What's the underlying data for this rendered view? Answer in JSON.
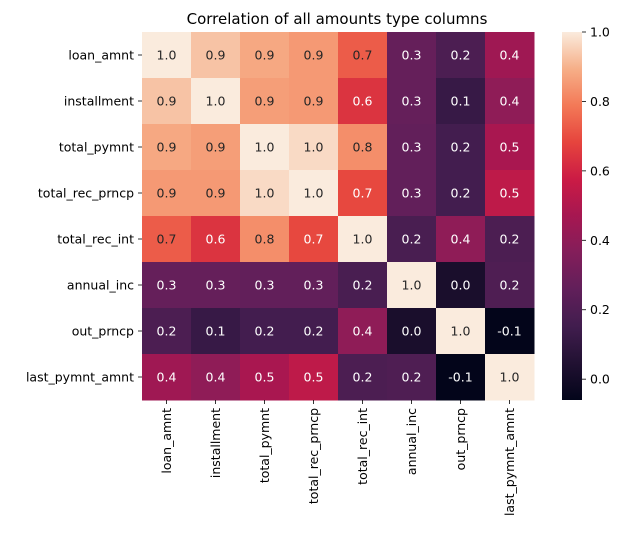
{
  "chart_data": {
    "type": "heatmap",
    "title": "Correlation of all amounts type columns",
    "xlabel": "",
    "ylabel": "",
    "rows": [
      "loan_amnt",
      "installment",
      "total_pymnt",
      "total_rec_prncp",
      "total_rec_int",
      "annual_inc",
      "out_prncp",
      "last_pymnt_amnt"
    ],
    "columns": [
      "loan_amnt",
      "installment",
      "total_pymnt",
      "total_rec_prncp",
      "total_rec_int",
      "annual_inc",
      "out_prncp",
      "last_pymnt_amnt"
    ],
    "values": [
      [
        1.0,
        0.93,
        0.88,
        0.85,
        0.73,
        0.27,
        0.19,
        0.45
      ],
      [
        0.93,
        1.0,
        0.86,
        0.85,
        0.64,
        0.27,
        0.12,
        0.4
      ],
      [
        0.88,
        0.86,
        1.0,
        0.97,
        0.83,
        0.26,
        0.16,
        0.48
      ],
      [
        0.85,
        0.85,
        0.97,
        1.0,
        0.69,
        0.26,
        0.16,
        0.54
      ],
      [
        0.73,
        0.64,
        0.83,
        0.69,
        1.0,
        0.18,
        0.4,
        0.19
      ],
      [
        0.27,
        0.27,
        0.26,
        0.26,
        0.18,
        1.0,
        0.02,
        0.2
      ],
      [
        0.19,
        0.12,
        0.16,
        0.16,
        0.4,
        0.02,
        1.0,
        -0.06
      ],
      [
        0.45,
        0.4,
        0.48,
        0.54,
        0.19,
        0.2,
        -0.06,
        1.0
      ]
    ],
    "labels": [
      [
        "1.0",
        "0.9",
        "0.9",
        "0.9",
        "0.7",
        "0.3",
        "0.2",
        "0.4"
      ],
      [
        "0.9",
        "1.0",
        "0.9",
        "0.9",
        "0.6",
        "0.3",
        "0.1",
        "0.4"
      ],
      [
        "0.9",
        "0.9",
        "1.0",
        "1.0",
        "0.8",
        "0.3",
        "0.2",
        "0.5"
      ],
      [
        "0.9",
        "0.9",
        "1.0",
        "1.0",
        "0.7",
        "0.3",
        "0.2",
        "0.5"
      ],
      [
        "0.7",
        "0.6",
        "0.8",
        "0.7",
        "1.0",
        "0.2",
        "0.4",
        "0.2"
      ],
      [
        "0.3",
        "0.3",
        "0.3",
        "0.3",
        "0.2",
        "1.0",
        "0.0",
        "0.2"
      ],
      [
        "0.2",
        "0.1",
        "0.2",
        "0.2",
        "0.4",
        "0.0",
        "1.0",
        "-0.1"
      ],
      [
        "0.4",
        "0.4",
        "0.5",
        "0.5",
        "0.2",
        "0.2",
        "-0.1",
        "1.0"
      ]
    ],
    "colorscale": "rocket",
    "vmin": -0.06,
    "vmax": 1.0,
    "colorbar_ticks": [
      0.0,
      0.2,
      0.4,
      0.6,
      0.8,
      1.0
    ],
    "colorbar_tick_labels": [
      "0.0",
      "0.2",
      "0.4",
      "0.6",
      "0.8",
      "1.0"
    ]
  }
}
